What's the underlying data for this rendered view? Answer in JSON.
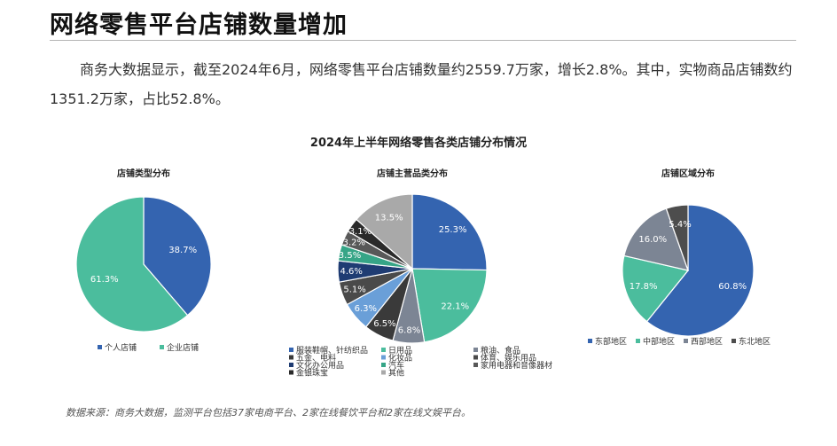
{
  "header": {
    "title": "网络零售平台店铺数量增加"
  },
  "intro": {
    "text": "商务大数据显示，截至2024年6月，网络零售平台店铺数量约2559.7万家，增长2.8%。其中，实物商品店铺数约1351.2万家，占比52.8%。"
  },
  "figure": {
    "title": "2024年上半年网络零售各类店铺分布情况"
  },
  "source": {
    "text": "数据来源：商务大数据，监测平台包括37家电商平台、2家在线餐饮平台和2家在线文娱平台。"
  },
  "chart_data": [
    {
      "type": "pie",
      "title": "店铺类型分布",
      "labels": [
        "个人店铺",
        "企业店铺"
      ],
      "values": [
        38.7,
        61.3
      ],
      "value_labels": [
        "38.7%",
        "61.3%"
      ],
      "colors": [
        "#3464b0",
        "#4bbd9d"
      ],
      "legend": "bottom"
    },
    {
      "type": "pie",
      "title": "店铺主营品类分布",
      "labels": [
        "服装鞋帽、针纺织品",
        "日用品",
        "粮油、食品",
        "五金、电料",
        "化妆品",
        "体育、娱乐用品",
        "文化办公用品",
        "汽车",
        "家用电器和音像器材",
        "金银珠宝",
        "其他"
      ],
      "values": [
        25.3,
        22.1,
        6.8,
        6.5,
        6.3,
        5.1,
        4.6,
        3.5,
        3.2,
        3.1,
        13.5
      ],
      "value_labels": [
        "25.3%",
        "22.1%",
        "6.8%",
        "6.5%",
        "6.3%",
        "5.1%",
        "4.6%",
        "3.5%",
        "3.2%",
        "3.1%",
        "13.5%"
      ],
      "colors": [
        "#3464b0",
        "#4bbd9d",
        "#7c8594",
        "#3a3a3a",
        "#6a9fd8",
        "#4a4a4a",
        "#1f3c73",
        "#36a587",
        "#585858",
        "#2a2a2a",
        "#a9a9a9"
      ],
      "legend": "bottom"
    },
    {
      "type": "pie",
      "title": "店铺区域分布",
      "labels": [
        "东部地区",
        "中部地区",
        "西部地区",
        "东北地区"
      ],
      "values": [
        60.8,
        17.8,
        16.0,
        5.4
      ],
      "value_labels": [
        "60.8%",
        "17.8%",
        "16.0%",
        "5.4%"
      ],
      "colors": [
        "#3464b0",
        "#4bbd9d",
        "#7c8594",
        "#4d4d4d"
      ],
      "legend": "bottom"
    }
  ]
}
